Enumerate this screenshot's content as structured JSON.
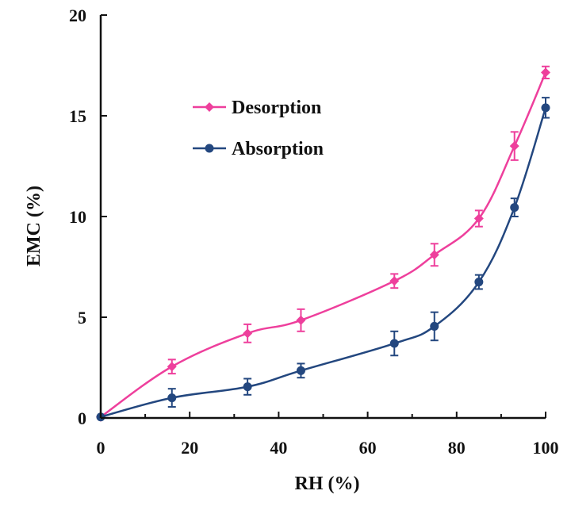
{
  "chart_data": {
    "type": "line",
    "title": "",
    "xlabel": "RH (%)",
    "ylabel": "EMC (%)",
    "xlim": [
      0,
      100
    ],
    "ylim": [
      0,
      20
    ],
    "x_ticks": [
      0,
      20,
      40,
      60,
      80,
      100
    ],
    "y_ticks": [
      0,
      5,
      10,
      15,
      20
    ],
    "grid": false,
    "legend_position": "upper-left",
    "series": [
      {
        "name": "Desorption",
        "color": "#ee3f9c",
        "marker": "diamond",
        "x": [
          0,
          16,
          33,
          45,
          66,
          75,
          85,
          93,
          100
        ],
        "y": [
          0.05,
          2.55,
          4.2,
          4.85,
          6.8,
          8.1,
          9.9,
          13.5,
          17.15
        ],
        "error": [
          0,
          0.35,
          0.45,
          0.55,
          0.35,
          0.55,
          0.4,
          0.7,
          0.3
        ]
      },
      {
        "name": "Absorption",
        "color": "#23477f",
        "marker": "circle",
        "x": [
          0,
          16,
          33,
          45,
          66,
          75,
          85,
          93,
          100
        ],
        "y": [
          0.05,
          1.0,
          1.55,
          2.35,
          3.7,
          4.55,
          6.75,
          10.45,
          15.4
        ],
        "error": [
          0,
          0.45,
          0.4,
          0.35,
          0.6,
          0.7,
          0.35,
          0.45,
          0.5
        ]
      }
    ]
  }
}
